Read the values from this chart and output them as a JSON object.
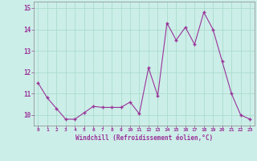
{
  "hours": [
    0,
    1,
    2,
    3,
    4,
    5,
    6,
    7,
    8,
    9,
    10,
    11,
    12,
    13,
    14,
    15,
    16,
    17,
    18,
    19,
    20,
    21,
    22,
    23
  ],
  "values": [
    11.5,
    10.8,
    10.3,
    9.8,
    9.8,
    10.1,
    10.4,
    10.35,
    10.35,
    10.35,
    10.6,
    10.05,
    12.2,
    10.9,
    14.3,
    13.5,
    14.1,
    13.3,
    14.8,
    14.0,
    12.5,
    11.0,
    10.0,
    9.8
  ],
  "line_color": "#993399",
  "marker": "+",
  "marker_color": "#993399",
  "bg_color": "#cceee8",
  "grid_color": "#aaddcc",
  "axis_color": "#993399",
  "xlabel": "Windchill (Refroidissement éolien,°C)",
  "xlabel_color": "#993399",
  "ylim": [
    9.5,
    15.3
  ],
  "yticks": [
    10,
    11,
    12,
    13,
    14,
    15
  ],
  "xticks": [
    0,
    1,
    2,
    3,
    4,
    5,
    6,
    7,
    8,
    9,
    10,
    11,
    12,
    13,
    14,
    15,
    16,
    17,
    18,
    19,
    20,
    21,
    22,
    23
  ]
}
